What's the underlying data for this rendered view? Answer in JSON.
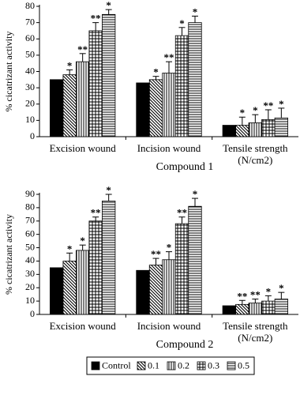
{
  "chart_data": [
    {
      "type": "bar",
      "y_label": "% cicatrizant activity",
      "x_label": "Compound 1",
      "categories": [
        "Excision wound",
        "Incision wound",
        "Tensile strength (N/cm2)"
      ],
      "ylim": [
        0,
        80
      ],
      "yticks": [
        0,
        10,
        20,
        30,
        40,
        50,
        60,
        70,
        80
      ],
      "series": [
        {
          "color": "#000000",
          "pattern": "solid",
          "values": [
            35,
            33,
            7
          ],
          "errors": [
            null,
            null,
            null
          ],
          "significance": [
            null,
            null,
            null
          ]
        },
        {
          "color": "#000000",
          "pattern": "diagonal",
          "values": [
            38,
            35,
            7
          ],
          "errors": [
            3,
            2,
            5
          ],
          "significance": [
            "*",
            "*",
            "*"
          ]
        },
        {
          "color": "#000000",
          "pattern": "vertical",
          "values": [
            46,
            39,
            8.5
          ],
          "errors": [
            5,
            7,
            5
          ],
          "significance": [
            "**",
            "**",
            "*"
          ]
        },
        {
          "color": "#000000",
          "pattern": "grid",
          "values": [
            65,
            62,
            10.5
          ],
          "errors": [
            5,
            5,
            6
          ],
          "significance": [
            "**",
            "*",
            "**"
          ]
        },
        {
          "color": "#000000",
          "pattern": "horizontal",
          "values": [
            75,
            70,
            11.5
          ],
          "errors": [
            3,
            4,
            6
          ],
          "significance": [
            "*",
            "*",
            "*"
          ]
        }
      ]
    },
    {
      "type": "bar",
      "y_label": "% cicatrizant activity",
      "x_label": "Compound 2",
      "legend": "bottom",
      "categories": [
        "Excision wound",
        "Incision wound",
        "Tensile strength (N/cm2)"
      ],
      "ylim": [
        0,
        90
      ],
      "yticks": [
        0,
        10,
        20,
        30,
        40,
        50,
        60,
        70,
        80,
        90
      ],
      "series": [
        {
          "name": "Control",
          "color": "#000000",
          "pattern": "solid",
          "values": [
            35,
            33,
            6.5
          ],
          "errors": [
            null,
            null,
            null
          ],
          "significance": [
            null,
            null,
            null
          ]
        },
        {
          "name": "0.1",
          "color": "#000000",
          "pattern": "diagonal",
          "values": [
            40,
            37,
            7.5
          ],
          "errors": [
            6,
            5,
            3
          ],
          "significance": [
            "*",
            "**",
            "**"
          ]
        },
        {
          "name": "0.2",
          "color": "#000000",
          "pattern": "vertical",
          "values": [
            48,
            41,
            8.5
          ],
          "errors": [
            4,
            6,
            3
          ],
          "significance": [
            "*",
            "*",
            "**"
          ]
        },
        {
          "name": "0.3",
          "color": "#000000",
          "pattern": "grid",
          "values": [
            70,
            68,
            10
          ],
          "errors": [
            3,
            5,
            4
          ],
          "significance": [
            "**",
            "**",
            "*"
          ]
        },
        {
          "name": "0.5",
          "color": "#000000",
          "pattern": "horizontal",
          "values": [
            85,
            81,
            11.5
          ],
          "errors": [
            5,
            6,
            5
          ],
          "significance": [
            "*",
            "*",
            "*"
          ]
        }
      ]
    }
  ]
}
